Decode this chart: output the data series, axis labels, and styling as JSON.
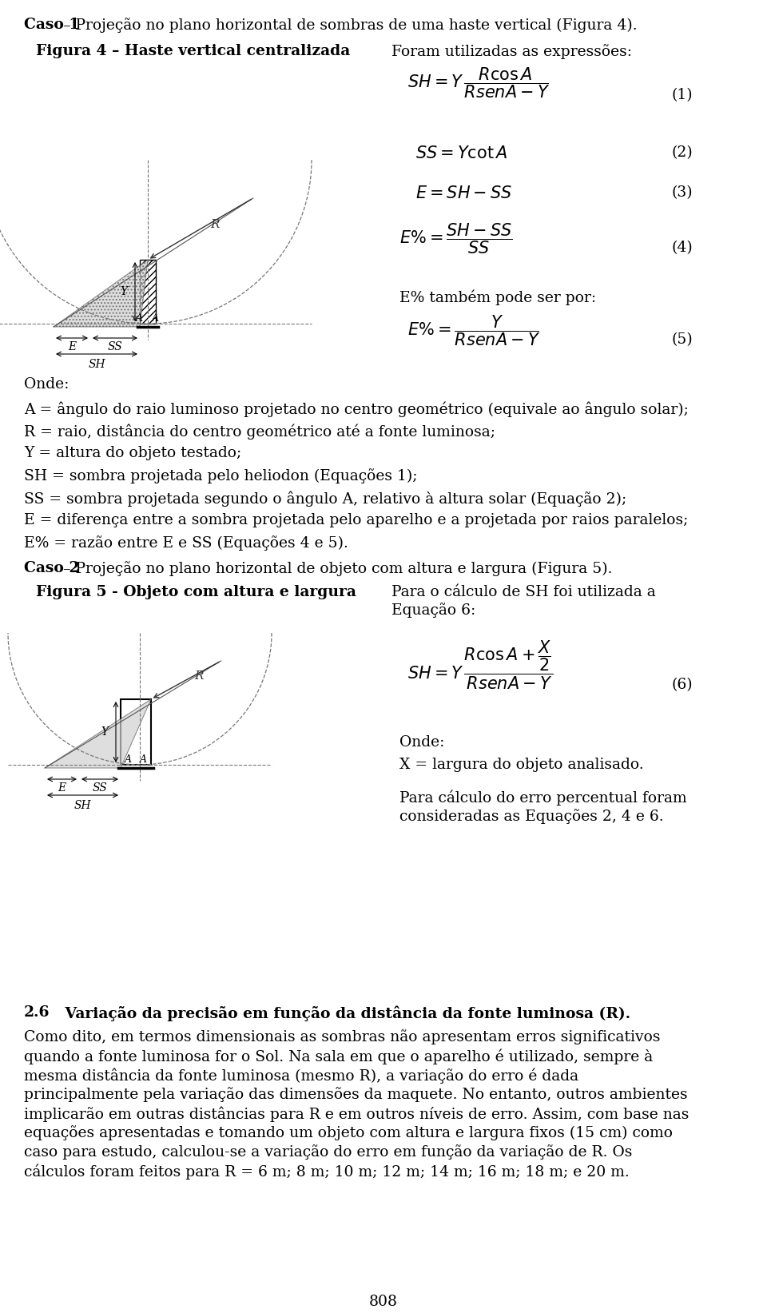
{
  "title_caso1_bold": "Caso 1",
  "title_caso1_rest": " – Projeção no plano horizontal de sombras de uma haste vertical (Figura 4).",
  "fig4_title": "Figura 4 – Haste vertical centralizada",
  "foram_text": "Foram utilizadas as expressões:",
  "eq1_label": "(1)",
  "eq2_label": "(2)",
  "eq3_label": "(3)",
  "eq4_label": "(4)",
  "eq5_label": "(5)",
  "eq5_also": "E% também pode ser por:",
  "onde_text": "Onde:",
  "def_A": "A = ângulo do raio luminoso projetado no centro geométrico (equivale ao ângulo solar);",
  "def_R": "R = raio, distância do centro geométrico até a fonte luminosa;",
  "def_Y": "Y = altura do objeto testado;",
  "def_SH": "SH = sombra projetada pelo heliodon (Equações 1);",
  "def_SS": "SS = sombra projetada segundo o ângulo A, relativo à altura solar (Equação 2);",
  "def_E": "E = diferença entre a sombra projetada pelo aparelho e a projetada por raios paralelos;",
  "def_Epct": "E% = razão entre E e SS (Equações 4 e 5).",
  "title_caso2_bold": "Caso 2",
  "title_caso2_rest": " – Projeção no plano horizontal de objeto com altura e largura (Figura 5).",
  "fig5_title": "Figura 5 - Objeto com altura e largura",
  "para_calc_top": "Para o cálculo de SH foi utilizada a",
  "equacao6_line": "Equação 6:",
  "eq6_label": "(6)",
  "onde2_text": "Onde:",
  "def_X": "X = largura do objeto analisado.",
  "para_erro_1": "Para cálculo do erro percentual foram",
  "para_erro_2": "consideradas as Equações 2, 4 e 6.",
  "sec26_num": "2.6",
  "sec26_title": "   Variação da precisão em função da distância da fonte luminosa (R).",
  "para_lines": [
    "Como dito, em termos dimensionais as sombras não apresentam erros significativos",
    "quando a fonte luminosa for o Sol. Na sala em que o aparelho é utilizado, sempre à",
    "mesma distância da fonte luminosa (mesmo R), a variação do erro é dada",
    "principalmente pela variação das dimensões da maquete. No entanto, outros ambientes",
    "implicarão em outras distâncias para R e em outros níveis de erro. Assim, com base nas",
    "equações apresentadas e tomando um objeto com altura e largura fixos (15 cm) como",
    "caso para estudo, calculou-se a variação do erro em função da variação de R. Os",
    "cálculos foram feitos para R = 6 m; 8 m; 10 m; 12 m; 14 m; 16 m; 18 m; e 20 m."
  ],
  "page_num": "808",
  "bg_color": "#ffffff",
  "lc": "#777777",
  "ml": 30,
  "mr": 930
}
